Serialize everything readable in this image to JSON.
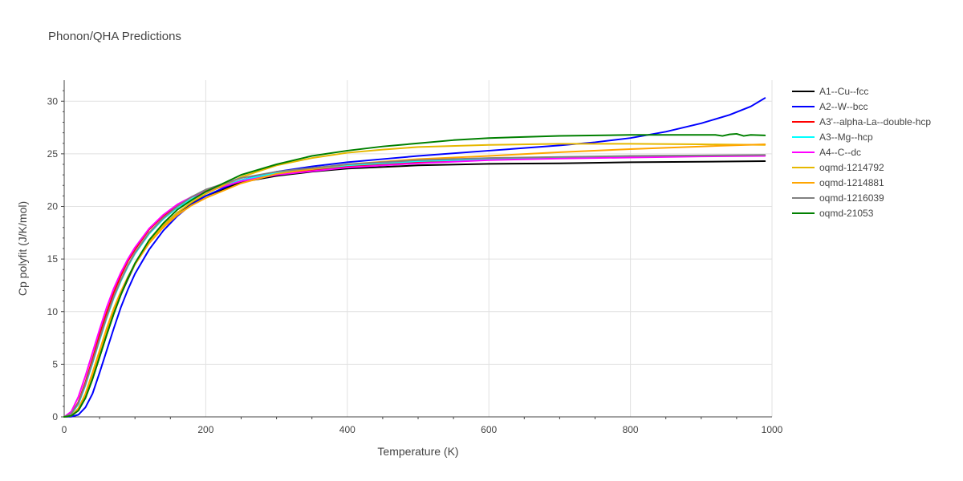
{
  "chart_data": {
    "type": "line",
    "title": "Phonon/QHA Predictions",
    "xlabel": "Temperature (K)",
    "ylabel": "Cp polyfit (J/K/mol)",
    "xlim": [
      0,
      1000
    ],
    "ylim": [
      0,
      32
    ],
    "x_ticks": [
      0,
      200,
      400,
      600,
      800,
      1000
    ],
    "y_ticks": [
      0,
      5,
      10,
      15,
      20,
      25,
      30
    ],
    "grid": true,
    "legend_position": "right",
    "series": [
      {
        "name": "A1--Cu--fcc",
        "color": "#000000",
        "points": [
          [
            0,
            0
          ],
          [
            10,
            0.1
          ],
          [
            20,
            0.6
          ],
          [
            30,
            1.8
          ],
          [
            40,
            3.6
          ],
          [
            50,
            5.7
          ],
          [
            60,
            7.8
          ],
          [
            70,
            9.8
          ],
          [
            80,
            11.6
          ],
          [
            90,
            13.1
          ],
          [
            100,
            14.5
          ],
          [
            120,
            16.6
          ],
          [
            140,
            18.2
          ],
          [
            160,
            19.4
          ],
          [
            180,
            20.3
          ],
          [
            200,
            21.0
          ],
          [
            250,
            22.3
          ],
          [
            300,
            22.9
          ],
          [
            350,
            23.3
          ],
          [
            400,
            23.6
          ],
          [
            500,
            23.9
          ],
          [
            600,
            24.05
          ],
          [
            700,
            24.1
          ],
          [
            800,
            24.2
          ],
          [
            900,
            24.25
          ],
          [
            990,
            24.3
          ]
        ]
      },
      {
        "name": "A2--W--bcc",
        "color": "#0000ff",
        "points": [
          [
            0,
            0
          ],
          [
            10,
            0.02
          ],
          [
            20,
            0.2
          ],
          [
            30,
            0.9
          ],
          [
            40,
            2.2
          ],
          [
            50,
            4.2
          ],
          [
            60,
            6.3
          ],
          [
            70,
            8.4
          ],
          [
            80,
            10.4
          ],
          [
            90,
            12.1
          ],
          [
            100,
            13.6
          ],
          [
            120,
            15.9
          ],
          [
            140,
            17.7
          ],
          [
            160,
            19.1
          ],
          [
            180,
            20.2
          ],
          [
            200,
            21.0
          ],
          [
            250,
            22.5
          ],
          [
            300,
            23.3
          ],
          [
            350,
            23.8
          ],
          [
            400,
            24.2
          ],
          [
            450,
            24.5
          ],
          [
            500,
            24.8
          ],
          [
            600,
            25.3
          ],
          [
            700,
            25.8
          ],
          [
            750,
            26.1
          ],
          [
            800,
            26.5
          ],
          [
            850,
            27.1
          ],
          [
            900,
            27.9
          ],
          [
            940,
            28.7
          ],
          [
            970,
            29.5
          ],
          [
            990,
            30.3
          ]
        ]
      },
      {
        "name": "A3'--alpha-La--double-hcp",
        "color": "#ff0000",
        "points": [
          [
            0,
            0
          ],
          [
            10,
            0.3
          ],
          [
            20,
            1.4
          ],
          [
            30,
            3.3
          ],
          [
            40,
            5.5
          ],
          [
            50,
            7.8
          ],
          [
            60,
            9.9
          ],
          [
            70,
            11.8
          ],
          [
            80,
            13.4
          ],
          [
            90,
            14.8
          ],
          [
            100,
            15.9
          ],
          [
            120,
            17.8
          ],
          [
            140,
            19.1
          ],
          [
            160,
            20.1
          ],
          [
            180,
            20.9
          ],
          [
            200,
            21.5
          ],
          [
            250,
            22.5
          ],
          [
            300,
            23.1
          ],
          [
            400,
            23.8
          ],
          [
            500,
            24.2
          ],
          [
            600,
            24.5
          ],
          [
            700,
            24.6
          ],
          [
            800,
            24.7
          ],
          [
            900,
            24.8
          ],
          [
            990,
            24.85
          ]
        ]
      },
      {
        "name": "A3--Mg--hcp",
        "color": "#00ffff",
        "points": [
          [
            0,
            0
          ],
          [
            10,
            0.25
          ],
          [
            20,
            1.2
          ],
          [
            30,
            3.0
          ],
          [
            40,
            5.1
          ],
          [
            50,
            7.3
          ],
          [
            60,
            9.4
          ],
          [
            70,
            11.3
          ],
          [
            80,
            12.9
          ],
          [
            90,
            14.3
          ],
          [
            100,
            15.5
          ],
          [
            120,
            17.4
          ],
          [
            140,
            18.8
          ],
          [
            160,
            19.9
          ],
          [
            180,
            20.7
          ],
          [
            200,
            21.4
          ],
          [
            250,
            22.5
          ],
          [
            300,
            23.2
          ],
          [
            400,
            23.9
          ],
          [
            500,
            24.3
          ],
          [
            600,
            24.5
          ],
          [
            700,
            24.65
          ],
          [
            800,
            24.75
          ],
          [
            900,
            24.8
          ],
          [
            990,
            24.85
          ]
        ]
      },
      {
        "name": "A4--C--dc",
        "color": "#ff00ff",
        "points": [
          [
            0,
            0
          ],
          [
            10,
            0.5
          ],
          [
            20,
            1.9
          ],
          [
            30,
            3.9
          ],
          [
            40,
            6.1
          ],
          [
            50,
            8.3
          ],
          [
            60,
            10.4
          ],
          [
            70,
            12.2
          ],
          [
            80,
            13.7
          ],
          [
            90,
            15.0
          ],
          [
            100,
            16.1
          ],
          [
            120,
            17.9
          ],
          [
            140,
            19.2
          ],
          [
            160,
            20.2
          ],
          [
            180,
            20.9
          ],
          [
            200,
            21.4
          ],
          [
            250,
            22.4
          ],
          [
            300,
            23.0
          ],
          [
            400,
            23.7
          ],
          [
            500,
            24.1
          ],
          [
            600,
            24.4
          ],
          [
            700,
            24.55
          ],
          [
            800,
            24.65
          ],
          [
            900,
            24.75
          ],
          [
            990,
            24.8
          ]
        ]
      },
      {
        "name": "oqmd-1214792",
        "color": "#e6b800",
        "points": [
          [
            0,
            0
          ],
          [
            10,
            0.1
          ],
          [
            20,
            0.7
          ],
          [
            30,
            2.0
          ],
          [
            40,
            3.9
          ],
          [
            50,
            6.0
          ],
          [
            60,
            8.1
          ],
          [
            70,
            10.0
          ],
          [
            80,
            11.7
          ],
          [
            90,
            13.2
          ],
          [
            100,
            14.5
          ],
          [
            120,
            16.6
          ],
          [
            140,
            18.2
          ],
          [
            160,
            19.4
          ],
          [
            180,
            20.4
          ],
          [
            200,
            21.2
          ],
          [
            250,
            22.8
          ],
          [
            300,
            23.9
          ],
          [
            350,
            24.6
          ],
          [
            400,
            25.1
          ],
          [
            450,
            25.4
          ],
          [
            500,
            25.65
          ],
          [
            600,
            25.85
          ],
          [
            700,
            25.95
          ],
          [
            800,
            25.95
          ],
          [
            900,
            25.9
          ],
          [
            990,
            25.85
          ]
        ]
      },
      {
        "name": "oqmd-1214881",
        "color": "#ffa500",
        "points": [
          [
            0,
            0
          ],
          [
            10,
            0.1
          ],
          [
            20,
            0.8
          ],
          [
            30,
            2.2
          ],
          [
            40,
            4.2
          ],
          [
            50,
            6.3
          ],
          [
            60,
            8.4
          ],
          [
            70,
            10.3
          ],
          [
            80,
            11.9
          ],
          [
            90,
            13.3
          ],
          [
            100,
            14.5
          ],
          [
            120,
            16.5
          ],
          [
            140,
            18.0
          ],
          [
            160,
            19.2
          ],
          [
            180,
            20.1
          ],
          [
            200,
            20.8
          ],
          [
            250,
            22.2
          ],
          [
            300,
            23.1
          ],
          [
            400,
            24.0
          ],
          [
            500,
            24.5
          ],
          [
            600,
            24.8
          ],
          [
            700,
            25.15
          ],
          [
            800,
            25.45
          ],
          [
            900,
            25.7
          ],
          [
            990,
            25.9
          ]
        ]
      },
      {
        "name": "oqmd-1216039",
        "color": "#808080",
        "points": [
          [
            0,
            0
          ],
          [
            10,
            0.3
          ],
          [
            20,
            1.3
          ],
          [
            30,
            3.1
          ],
          [
            40,
            5.2
          ],
          [
            50,
            7.4
          ],
          [
            60,
            9.5
          ],
          [
            70,
            11.4
          ],
          [
            80,
            13.0
          ],
          [
            90,
            14.4
          ],
          [
            100,
            15.6
          ],
          [
            120,
            17.5
          ],
          [
            140,
            18.9
          ],
          [
            160,
            20.0
          ],
          [
            180,
            20.9
          ],
          [
            200,
            21.6
          ],
          [
            250,
            22.7
          ],
          [
            300,
            23.3
          ],
          [
            400,
            24.0
          ],
          [
            500,
            24.4
          ],
          [
            600,
            24.6
          ],
          [
            700,
            24.7
          ],
          [
            800,
            24.8
          ],
          [
            900,
            24.85
          ],
          [
            990,
            24.9
          ]
        ]
      },
      {
        "name": "oqmd-21053",
        "color": "#008000",
        "points": [
          [
            0,
            0
          ],
          [
            10,
            0.1
          ],
          [
            20,
            0.6
          ],
          [
            30,
            1.8
          ],
          [
            40,
            3.6
          ],
          [
            50,
            5.7
          ],
          [
            60,
            7.8
          ],
          [
            70,
            9.8
          ],
          [
            80,
            11.6
          ],
          [
            90,
            13.2
          ],
          [
            100,
            14.6
          ],
          [
            120,
            16.8
          ],
          [
            140,
            18.4
          ],
          [
            160,
            19.7
          ],
          [
            180,
            20.6
          ],
          [
            200,
            21.4
          ],
          [
            250,
            23.0
          ],
          [
            300,
            24.0
          ],
          [
            350,
            24.8
          ],
          [
            400,
            25.3
          ],
          [
            450,
            25.7
          ],
          [
            500,
            26.0
          ],
          [
            550,
            26.3
          ],
          [
            600,
            26.5
          ],
          [
            700,
            26.7
          ],
          [
            800,
            26.8
          ],
          [
            900,
            26.8
          ],
          [
            920,
            26.8
          ],
          [
            930,
            26.7
          ],
          [
            940,
            26.85
          ],
          [
            950,
            26.9
          ],
          [
            960,
            26.7
          ],
          [
            970,
            26.8
          ],
          [
            990,
            26.75
          ]
        ]
      }
    ]
  }
}
